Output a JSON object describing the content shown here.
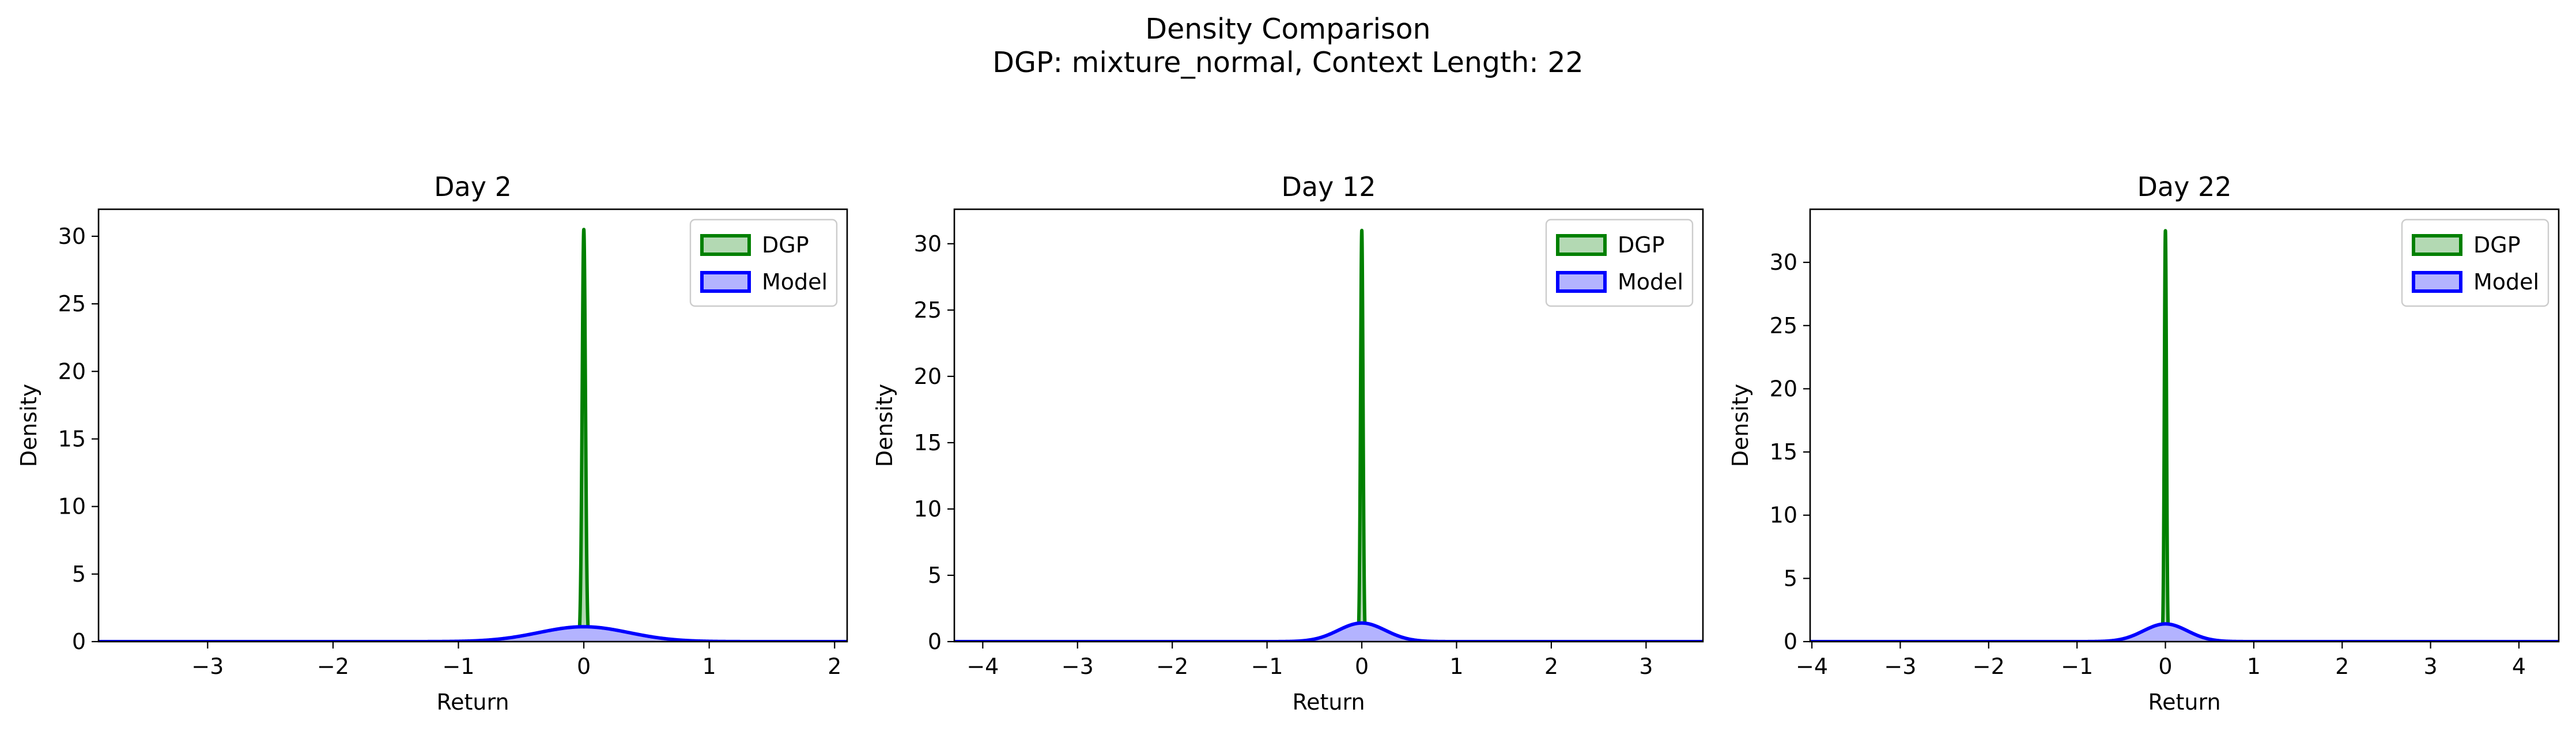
{
  "suptitle_line1": "Density Comparison",
  "suptitle_line2": "DGP: mixture_normal, Context Length: 22",
  "colors": {
    "dgp": "#008000",
    "dgp_fill": "#b3d9b3",
    "model": "#0000ff",
    "model_fill": "#b3b3ff"
  },
  "chart_data": [
    {
      "type": "area",
      "title": "Day 2",
      "xlabel": "Return",
      "ylabel": "Density",
      "xlim": [
        -3.87,
        2.1
      ],
      "ylim": [
        0,
        32
      ],
      "xticks": [
        -3,
        -2,
        -1,
        0,
        1,
        2
      ],
      "yticks": [
        0,
        5,
        10,
        15,
        20,
        25,
        30
      ],
      "legend": "top-right",
      "grid": false,
      "series": [
        {
          "name": "DGP",
          "kind": "gaussian",
          "peak": 30.5,
          "mean": 0.0,
          "sd": 0.013
        },
        {
          "name": "Model",
          "kind": "gaussian",
          "peak": 1.1,
          "mean": 0.0,
          "sd": 0.36
        }
      ]
    },
    {
      "type": "area",
      "title": "Day 12",
      "xlabel": "Return",
      "ylabel": "Density",
      "xlim": [
        -4.3,
        3.6
      ],
      "ylim": [
        0,
        32.6
      ],
      "xticks": [
        -4,
        -3,
        -2,
        -1,
        0,
        1,
        2,
        3
      ],
      "yticks": [
        0,
        5,
        10,
        15,
        20,
        25,
        30
      ],
      "legend": "top-right",
      "grid": false,
      "series": [
        {
          "name": "DGP",
          "kind": "gaussian",
          "peak": 31.0,
          "mean": 0.0,
          "sd": 0.013
        },
        {
          "name": "Model",
          "kind": "gaussian",
          "peak": 1.4,
          "mean": 0.0,
          "sd": 0.25
        }
      ]
    },
    {
      "type": "area",
      "title": "Day 22",
      "xlabel": "Return",
      "ylabel": "Density",
      "xlim": [
        -4.02,
        4.45
      ],
      "ylim": [
        0,
        34.2
      ],
      "xticks": [
        -4,
        -3,
        -2,
        -1,
        0,
        1,
        2,
        3,
        4
      ],
      "yticks": [
        0,
        5,
        10,
        15,
        20,
        25,
        30
      ],
      "legend": "top-right",
      "grid": false,
      "series": [
        {
          "name": "DGP",
          "kind": "gaussian",
          "peak": 32.5,
          "mean": 0.0,
          "sd": 0.012
        },
        {
          "name": "Model",
          "kind": "gaussian",
          "peak": 1.4,
          "mean": 0.0,
          "sd": 0.25
        }
      ]
    }
  ]
}
